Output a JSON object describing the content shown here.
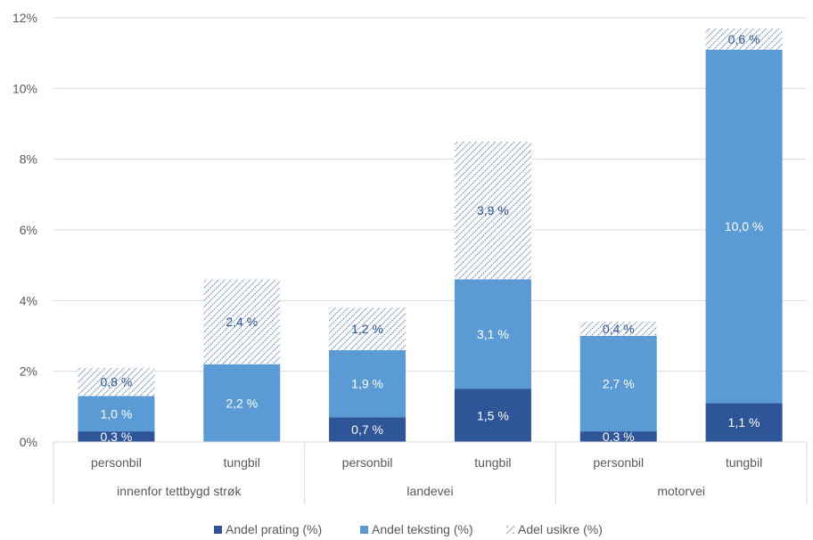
{
  "chart_data": {
    "type": "bar",
    "stacked": true,
    "ylim": [
      0,
      12
    ],
    "yticks": [
      "0%",
      "2%",
      "4%",
      "6%",
      "8%",
      "10%",
      "12%"
    ],
    "grid": true,
    "legend_position": "bottom",
    "groups": [
      {
        "label": "innenfor tettbygd strøk",
        "categories": [
          "personbil",
          "tungbil"
        ]
      },
      {
        "label": "landevei",
        "categories": [
          "personbil",
          "tungbil"
        ]
      },
      {
        "label": "motorvei",
        "categories": [
          "personbil",
          "tungbil"
        ]
      }
    ],
    "series": [
      {
        "name": "Andel prating (%)",
        "color": "#2e5597",
        "pattern": "solid",
        "label_color": "#ffffff",
        "values": [
          0.3,
          0,
          0.7,
          1.5,
          0.3,
          1.1
        ],
        "labels": [
          "0,3 %",
          "",
          "0,7 %",
          "1,5 %",
          "0,3 %",
          "1,1 %"
        ]
      },
      {
        "name": "Andel teksting (%)",
        "color": "#5b9bd5",
        "pattern": "solid",
        "label_color": "#ffffff",
        "values": [
          1.0,
          2.2,
          1.9,
          3.1,
          2.7,
          10.0
        ],
        "labels": [
          "1,0 %",
          "2,2 %",
          "1,9 %",
          "3,1 %",
          "2,7 %",
          "10,0 %"
        ]
      },
      {
        "name": "Adel usikre (%)",
        "color": "#2e5597",
        "pattern": "hatch",
        "label_color": "#2e5597",
        "values": [
          0.8,
          2.4,
          1.2,
          3.9,
          0.4,
          0.6
        ],
        "labels": [
          "0,8 %",
          "2,4 %",
          "1,2 %",
          "3,9 %",
          "0,4 %",
          "0,6 %"
        ]
      }
    ]
  }
}
